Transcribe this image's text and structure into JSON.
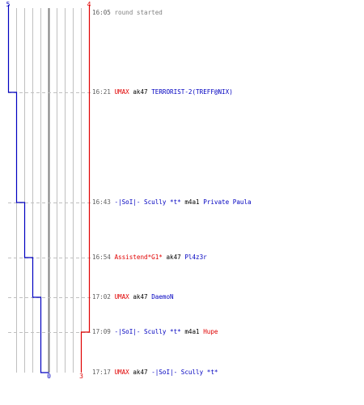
{
  "chart_data": {
    "type": "line",
    "title": "",
    "xlabel": "",
    "ylabel": "",
    "x_axis": {
      "blue_top_value": 5,
      "red_top_value": 4,
      "blue_bottom_value": 0,
      "red_bottom_value": 3
    },
    "colors": {
      "blue": "#0000c0",
      "red": "#e00000",
      "grid": "#c0c0c0",
      "midline": "#808080",
      "dashes": "#c0c0c0",
      "time": "#606060",
      "note": "#808080",
      "weapon": "#000000"
    },
    "series": [
      {
        "team": "blue",
        "times": [
          "16:05",
          "16:21",
          "16:43",
          "16:54",
          "17:02",
          "17:09",
          "17:17"
        ],
        "values": [
          5,
          4,
          3,
          2,
          1,
          1,
          0
        ]
      },
      {
        "team": "red",
        "times": [
          "16:05",
          "16:21",
          "16:43",
          "16:54",
          "17:02",
          "17:09",
          "17:17"
        ],
        "values": [
          4,
          4,
          4,
          4,
          4,
          3,
          3
        ]
      }
    ],
    "events": [
      {
        "time": "16:05",
        "note": "round started"
      },
      {
        "time": "16:21",
        "killer": "UMAX",
        "killer_team": "red",
        "weapon": "ak47",
        "victim": "TERRORIST-2(TREFF@NIX)",
        "victim_team": "blue"
      },
      {
        "time": "16:43",
        "killer": "-|SoI|- Scully *t*",
        "killer_team": "blue",
        "weapon": "m4a1",
        "victim": "Private Paula",
        "victim_team": "blue"
      },
      {
        "time": "16:54",
        "killer": "Assistend*G1*",
        "killer_team": "red",
        "weapon": "ak47",
        "victim": "Pl4z3r",
        "victim_team": "blue"
      },
      {
        "time": "17:02",
        "killer": "UMAX",
        "killer_team": "red",
        "weapon": "ak47",
        "victim": "DaemoN",
        "victim_team": "blue"
      },
      {
        "time": "17:09",
        "killer": "-|SoI|- Scully *t*",
        "killer_team": "blue",
        "weapon": "m4a1",
        "victim": "Hupe",
        "victim_team": "red"
      },
      {
        "time": "17:17",
        "killer": "UMAX",
        "killer_team": "red",
        "weapon": "ak47",
        "victim": "-|SoI|- Scully *t*",
        "victim_team": "blue"
      }
    ]
  }
}
